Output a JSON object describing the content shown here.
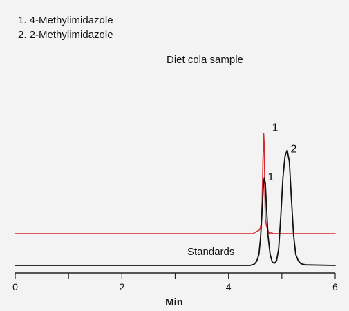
{
  "legend": {
    "items": [
      "1. 4-Methylimidazole",
      "2. 2-Methylimidazole"
    ]
  },
  "chart_data": {
    "type": "line",
    "title": "",
    "xlabel": "Min",
    "ylabel": "",
    "xlim": [
      0,
      6
    ],
    "x_ticks": [
      0,
      2,
      4,
      6
    ],
    "grid": false,
    "series": [
      {
        "name": "Diet cola sample",
        "color": "#d7262e",
        "baseline_level": 0.58,
        "points": [
          [
            0.0,
            0.58
          ],
          [
            4.46,
            0.58
          ],
          [
            4.49,
            0.6
          ],
          [
            4.51,
            0.61
          ],
          [
            4.53,
            0.62
          ],
          [
            4.55,
            0.63
          ],
          [
            4.57,
            0.64
          ],
          [
            4.59,
            0.66
          ],
          [
            4.61,
            0.75
          ],
          [
            4.63,
            1.15
          ],
          [
            4.645,
            1.9
          ],
          [
            4.66,
            2.4
          ],
          [
            4.67,
            2.2
          ],
          [
            4.68,
            1.4
          ],
          [
            4.69,
            0.85
          ],
          [
            4.71,
            0.73
          ],
          [
            4.73,
            0.66
          ],
          [
            4.75,
            0.61
          ],
          [
            4.77,
            0.58
          ],
          [
            4.79,
            0.59
          ],
          [
            4.81,
            0.6
          ],
          [
            4.83,
            0.58
          ],
          [
            6.0,
            0.58
          ]
        ],
        "peak_labels": [
          {
            "text": "1",
            "x": 4.66,
            "y": 2.4
          }
        ]
      },
      {
        "name": "Standards",
        "color": "#111111",
        "baseline_level": 0.0,
        "points": [
          [
            0.0,
            0.0
          ],
          [
            4.4,
            0.0
          ],
          [
            4.48,
            0.02
          ],
          [
            4.53,
            0.08
          ],
          [
            4.57,
            0.2
          ],
          [
            4.6,
            0.5
          ],
          [
            4.63,
            1.0
          ],
          [
            4.65,
            1.4
          ],
          [
            4.67,
            1.6
          ],
          [
            4.69,
            1.5
          ],
          [
            4.71,
            1.1
          ],
          [
            4.74,
            0.55
          ],
          [
            4.78,
            0.2
          ],
          [
            4.82,
            0.06
          ],
          [
            4.86,
            0.04
          ],
          [
            4.9,
            0.08
          ],
          [
            4.94,
            0.3
          ],
          [
            4.98,
            0.9
          ],
          [
            5.02,
            1.6
          ],
          [
            5.06,
            2.0
          ],
          [
            5.1,
            2.1
          ],
          [
            5.14,
            1.9
          ],
          [
            5.18,
            1.2
          ],
          [
            5.22,
            0.55
          ],
          [
            5.26,
            0.2
          ],
          [
            5.31,
            0.08
          ],
          [
            5.36,
            0.03
          ],
          [
            5.45,
            0.01
          ],
          [
            6.0,
            0.0
          ]
        ],
        "peak_labels": [
          {
            "text": "1",
            "x": 4.67,
            "y": 1.6
          },
          {
            "text": "2",
            "x": 5.1,
            "y": 2.1
          }
        ]
      }
    ]
  }
}
